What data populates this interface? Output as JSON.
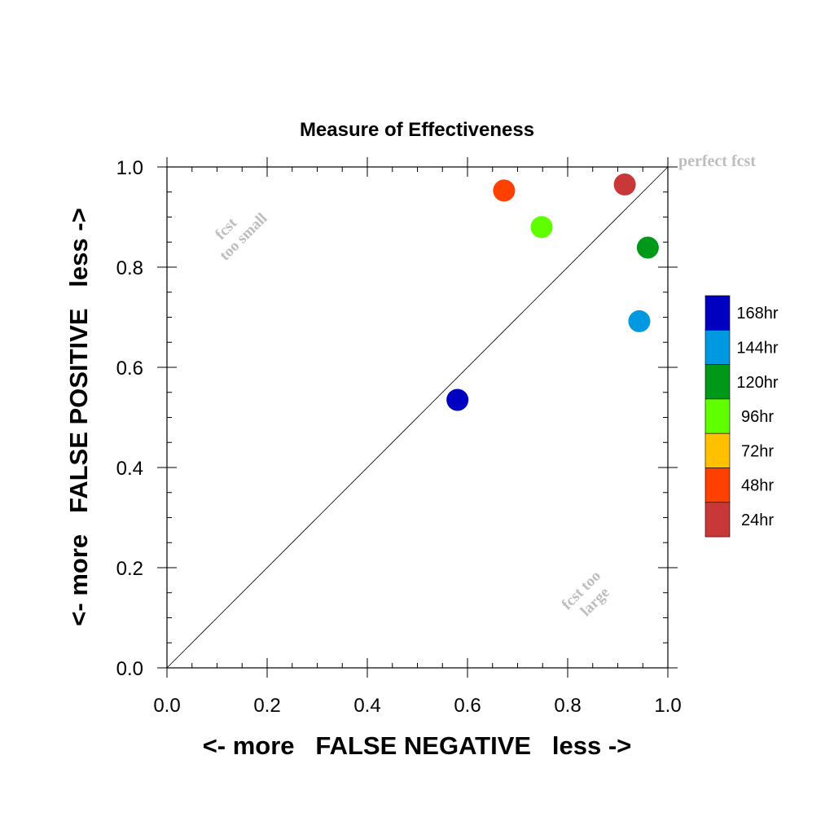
{
  "chart_data": {
    "type": "scatter",
    "title": "Measure of Effectiveness",
    "xlabel": "<- more   FALSE NEGATIVE   less ->",
    "ylabel": "<- more   FALSE POSITIVE   less ->",
    "xlim": [
      0,
      1
    ],
    "ylim": [
      0,
      1
    ],
    "xticks": [
      "0.0",
      "0.2",
      "0.4",
      "0.6",
      "0.8",
      "1.0"
    ],
    "yticks": [
      "0.0",
      "0.2",
      "0.4",
      "0.6",
      "0.8",
      "1.0"
    ],
    "grid": false,
    "diagonal_reference_line": true,
    "annotations": {
      "perfect": "perfect fcst",
      "too_small_line1": "fcst",
      "too_small_line2": "too small",
      "too_large_line1": "fcst too",
      "too_large_line2": "large"
    },
    "legend": {
      "placement": "right",
      "entries": [
        {
          "label": "168hr",
          "color": "#0000c0"
        },
        {
          "label": "144hr",
          "color": "#0098e0"
        },
        {
          "label": "120hr",
          "color": "#009818"
        },
        {
          "label": "96hr",
          "color": "#60ff00"
        },
        {
          "label": "72hr",
          "color": "#ffc000"
        },
        {
          "label": "48hr",
          "color": "#ff4000"
        },
        {
          "label": "24hr",
          "color": "#c83838"
        }
      ]
    },
    "points": [
      {
        "label": "168hr",
        "x": 0.58,
        "y": 0.535,
        "color": "#0000c0"
      },
      {
        "label": "144hr",
        "x": 0.943,
        "y": 0.692,
        "color": "#0098e0"
      },
      {
        "label": "120hr",
        "x": 0.96,
        "y": 0.839,
        "color": "#009818"
      },
      {
        "label": "96hr",
        "x": 0.748,
        "y": 0.88,
        "color": "#60ff00"
      },
      {
        "label": "48hr",
        "x": 0.673,
        "y": 0.953,
        "color": "#ff4000"
      },
      {
        "label": "24hr",
        "x": 0.914,
        "y": 0.965,
        "color": "#c83838"
      }
    ]
  }
}
